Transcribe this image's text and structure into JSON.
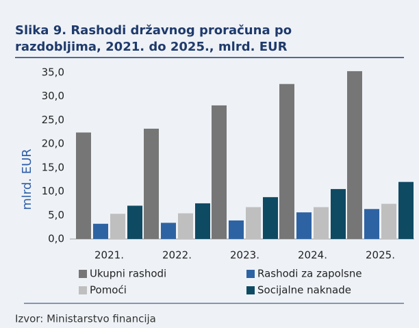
{
  "chart_data": {
    "type": "bar",
    "title_lines": [
      "Slika 9. Rashodi državnog proračuna po",
      "razdobljima, 2021. do 2025., mlrd. EUR"
    ],
    "ylabel": "mlrd. EUR",
    "categories": [
      "2021.",
      "2022.",
      "2023.",
      "2024.",
      "2025."
    ],
    "series": [
      {
        "name": "Ukupni rashodi",
        "color": "#767676",
        "values": [
          22.4,
          23.2,
          28.1,
          32.6,
          35.3
        ]
      },
      {
        "name": "Rashodi za zapolsne",
        "color": "#2e63a3",
        "values": [
          3.2,
          3.4,
          3.9,
          5.6,
          6.3
        ]
      },
      {
        "name": "Pomoći",
        "color": "#bfbfbf",
        "values": [
          5.3,
          5.4,
          6.7,
          6.7,
          7.4
        ]
      },
      {
        "name": "Socijalne naknade",
        "color": "#0f4a63",
        "values": [
          7.0,
          7.5,
          8.8,
          10.5,
          12.0
        ]
      }
    ],
    "ylim": [
      0,
      35
    ],
    "yticks": [
      {
        "value": 0,
        "label": "0,0"
      },
      {
        "value": 5,
        "label": "5,0"
      },
      {
        "value": 10,
        "label": "10,0"
      },
      {
        "value": 15,
        "label": "15,0"
      },
      {
        "value": 20,
        "label": "20,0"
      },
      {
        "value": 25,
        "label": "25,0"
      },
      {
        "value": 30,
        "label": "30,0"
      },
      {
        "value": 35,
        "label": "35,0"
      }
    ],
    "grid": false,
    "legend": "bottom",
    "source": "Izvor: Ministarstvo financija"
  }
}
